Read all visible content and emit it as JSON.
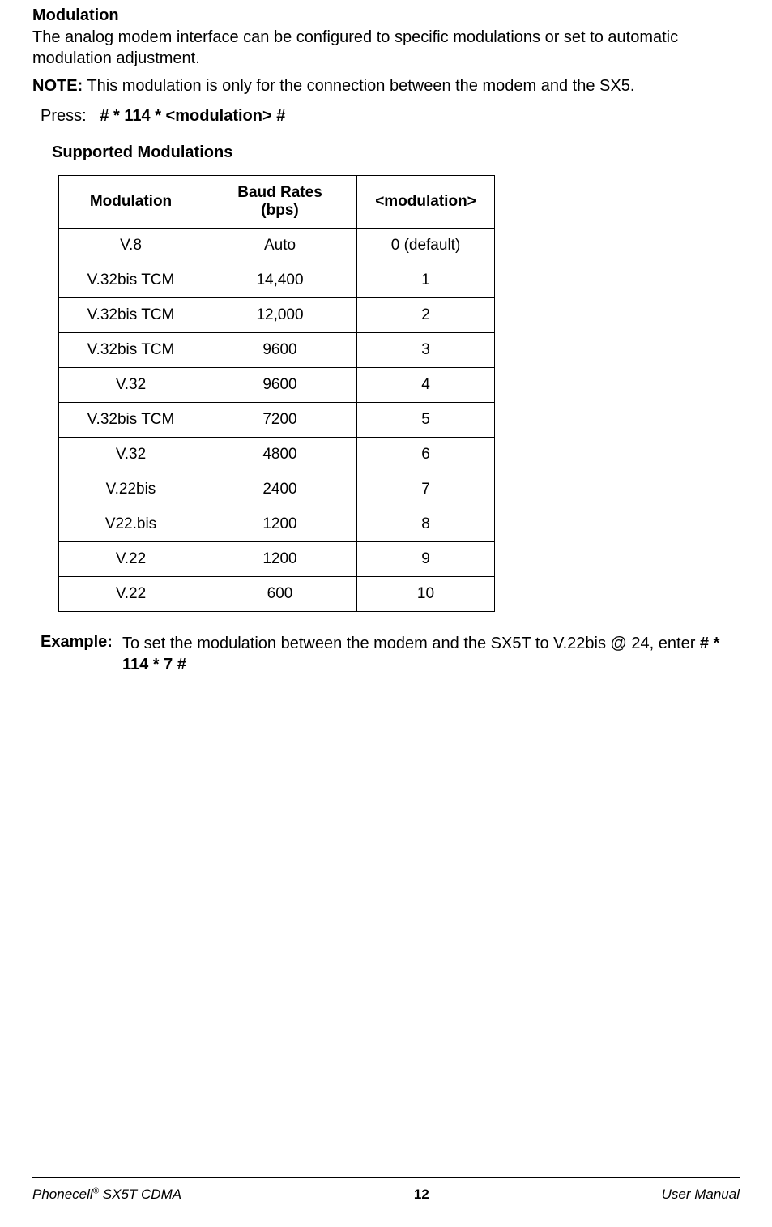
{
  "section": {
    "title": "Modulation",
    "intro": "The analog modem interface can be configured to specific modulations or set to automatic modulation adjustment.",
    "note_label": "NOTE:",
    "note_text": "This modulation is only for the connection between the modem and the SX5.",
    "press_label": "Press:",
    "press_code": "#  *  114  *  <modulation>  #",
    "table_title": "Supported Modulations"
  },
  "table": {
    "columns": [
      "Modulation",
      "Baud Rates (bps)",
      "<modulation>"
    ],
    "rows": [
      [
        "V.8",
        "Auto",
        "0 (default)"
      ],
      [
        "V.32bis TCM",
        "14,400",
        "1"
      ],
      [
        "V.32bis TCM",
        "12,000",
        "2"
      ],
      [
        "V.32bis TCM",
        "9600",
        "3"
      ],
      [
        "V.32",
        "9600",
        "4"
      ],
      [
        "V.32bis TCM",
        "7200",
        "5"
      ],
      [
        "V.32",
        "4800",
        "6"
      ],
      [
        "V.22bis",
        "2400",
        "7"
      ],
      [
        "V22.bis",
        "1200",
        "8"
      ],
      [
        "V.22",
        "1200",
        "9"
      ],
      [
        "V.22",
        "600",
        "10"
      ]
    ]
  },
  "example": {
    "label": "Example:",
    "text_before": "To set the modulation between the modem and the SX5T to V.22bis @ 24, enter ",
    "code": "#  *  114  *  7  #"
  },
  "footer": {
    "left_product": "Phonecell",
    "left_reg": "®",
    "left_model": " SX5T CDMA",
    "page_number": "12",
    "right": "User Manual"
  }
}
